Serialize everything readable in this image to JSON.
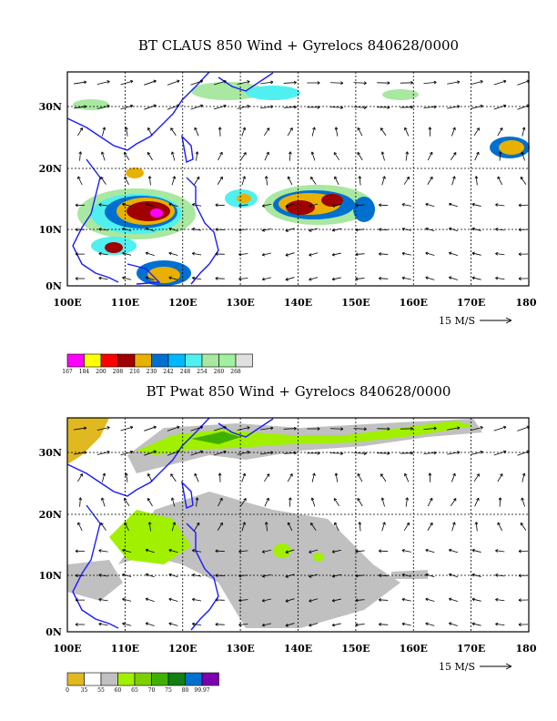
{
  "panels": [
    {
      "id": "claus",
      "title": "BT CLAUS 850 Wind + Gyrelocs 840628/0000",
      "lon_ticks": [
        "100E",
        "110E",
        "120E",
        "130E",
        "140E",
        "150E",
        "160E",
        "170E",
        "180"
      ],
      "lat_ticks": [
        "0N",
        "10N",
        "20N",
        "30N"
      ],
      "scale_label": "15 M/S",
      "legend": {
        "colors": [
          "#ff00ff",
          "#ffff00",
          "#ff0000",
          "#a00000",
          "#e8b000",
          "#0070d0",
          "#00b8ff",
          "#50f0f0",
          "#a8e8a0",
          "#a0f0a0",
          "#e0e0e0"
        ],
        "labels": [
          "167",
          "184",
          "200",
          "208",
          "216",
          "230",
          "242",
          "248",
          "254",
          "260",
          "268"
        ]
      }
    },
    {
      "id": "pwat",
      "title": "BT Pwat 850 Wind + Gyrelocs 840628/0000",
      "lon_ticks": [
        "100E",
        "110E",
        "120E",
        "130E",
        "140E",
        "150E",
        "160E",
        "170E",
        "180"
      ],
      "lat_ticks": [
        "0N",
        "10N",
        "20N",
        "30N"
      ],
      "scale_label": "15 M/S",
      "legend": {
        "colors": [
          "#e0b820",
          "#ffffff",
          "#c0c0c0",
          "#a0f000",
          "#7cd000",
          "#40b000",
          "#108010",
          "#0070d0",
          "#7a00b0"
        ],
        "labels": [
          "0",
          "35",
          "55",
          "60",
          "65",
          "70",
          "75",
          "80",
          "99.97"
        ]
      }
    }
  ]
}
